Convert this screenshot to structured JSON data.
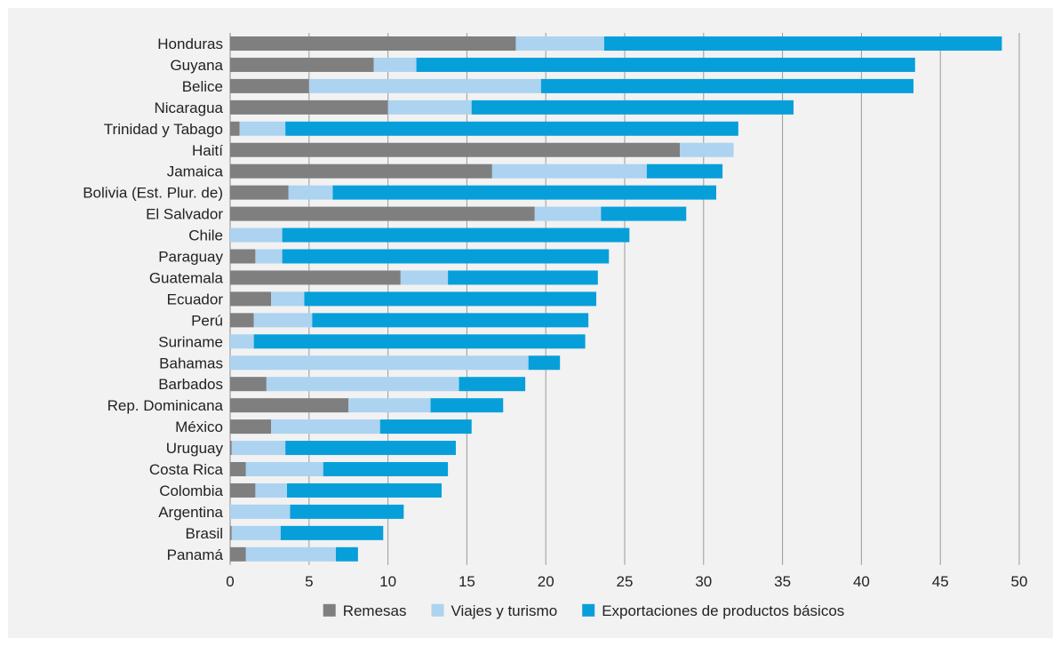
{
  "chart_data": {
    "type": "bar",
    "orientation": "horizontal",
    "stacked": true,
    "title": "",
    "xlabel": "",
    "ylabel": "",
    "xlim": [
      0,
      50
    ],
    "xticks": [
      0,
      5,
      10,
      15,
      20,
      25,
      30,
      35,
      40,
      45,
      50
    ],
    "grid": "vertical",
    "legend_position": "bottom",
    "categories": [
      "Honduras",
      "Guyana",
      "Belice",
      "Nicaragua",
      "Trinidad y Tabago",
      "Haití",
      "Jamaica",
      "Bolivia (Est. Plur. de)",
      "El Salvador",
      "Chile",
      "Paraguay",
      "Guatemala",
      "Ecuador",
      "Perú",
      "Suriname",
      "Bahamas",
      "Barbados",
      "Rep. Dominicana",
      "México",
      "Uruguay",
      "Costa Rica",
      "Colombia",
      "Argentina",
      "Brasil",
      "Panamá"
    ],
    "series": [
      {
        "name": "Remesas",
        "color": "#7f7f7f",
        "values": [
          18.1,
          9.1,
          5.0,
          10.0,
          0.6,
          28.5,
          16.6,
          3.7,
          19.3,
          0.0,
          1.6,
          10.8,
          2.6,
          1.5,
          0.0,
          0.0,
          2.3,
          7.5,
          2.6,
          0.1,
          1.0,
          1.6,
          0.0,
          0.1,
          1.0
        ]
      },
      {
        "name": "Viajes y turismo",
        "color": "#acd3f0",
        "values": [
          5.6,
          2.7,
          14.7,
          5.3,
          2.9,
          3.4,
          9.8,
          2.8,
          4.2,
          3.3,
          1.7,
          3.0,
          2.1,
          3.7,
          1.5,
          18.9,
          12.2,
          5.2,
          6.9,
          3.4,
          4.9,
          2.0,
          3.8,
          3.1,
          5.7
        ]
      },
      {
        "name": "Exportaciones de productos básicos",
        "color": "#079fda",
        "values": [
          25.2,
          31.6,
          23.6,
          20.4,
          28.7,
          0.0,
          4.8,
          24.3,
          5.4,
          22.0,
          20.7,
          9.5,
          18.5,
          17.5,
          21.0,
          2.0,
          4.2,
          4.6,
          5.8,
          10.8,
          7.9,
          9.8,
          7.2,
          6.5,
          1.4
        ]
      }
    ]
  }
}
